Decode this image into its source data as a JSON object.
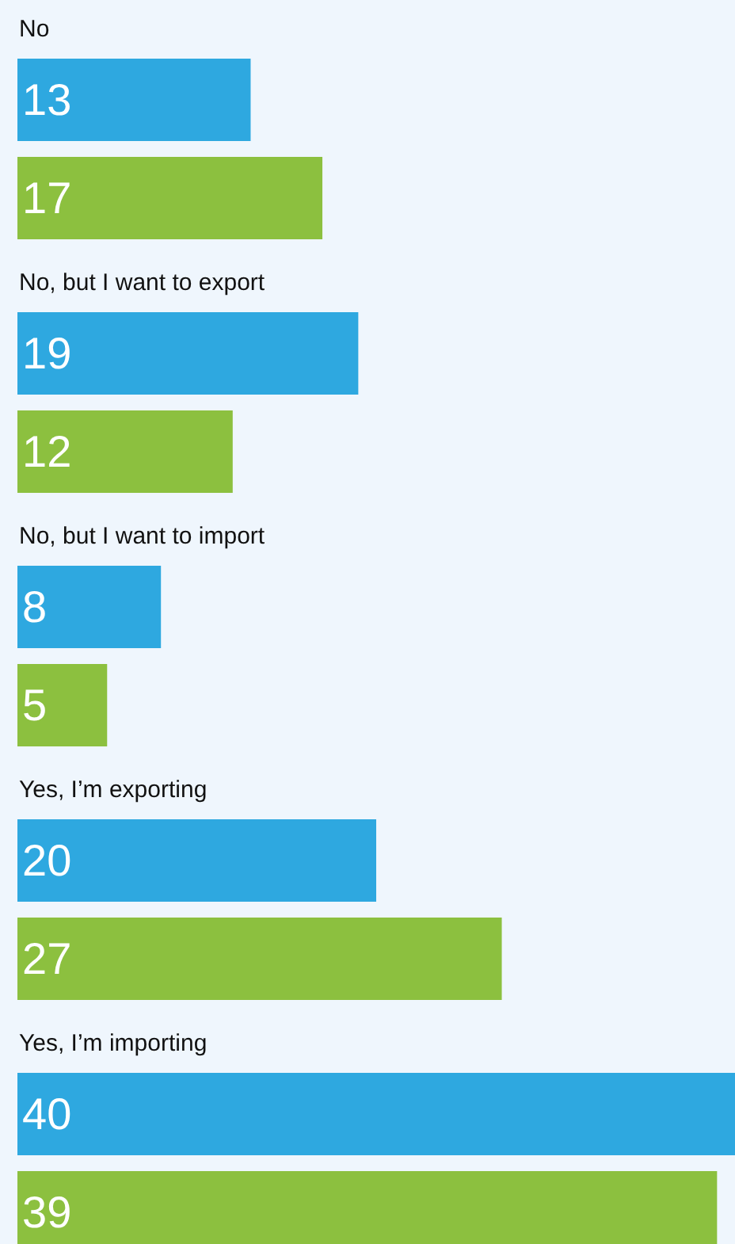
{
  "chart_data": {
    "type": "bar",
    "orientation": "horizontal",
    "data_labels": true,
    "categories": [
      "No",
      "No, but I want to export",
      "No, but I want to import",
      "Yes, I’m exporting",
      "Yes, I’m importing"
    ],
    "series": [
      {
        "color": "#2ea8e0",
        "values": [
          13,
          19,
          8,
          20,
          40
        ]
      },
      {
        "color": "#8cc03f",
        "values": [
          17,
          12,
          5,
          27,
          39
        ]
      }
    ]
  }
}
